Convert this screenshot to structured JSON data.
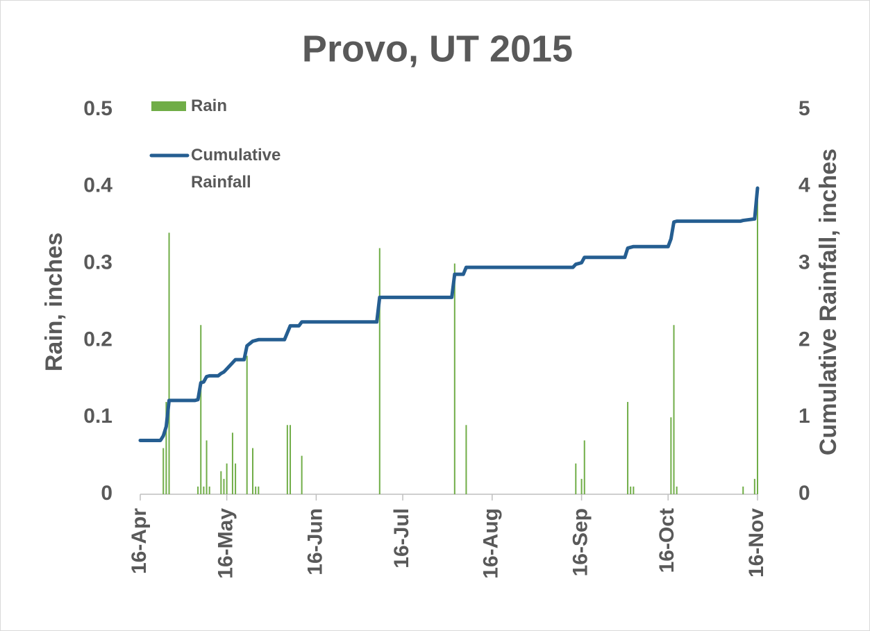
{
  "chart_data": {
    "type": "combo",
    "title": "Provo, UT 2015",
    "y_label": "Rain, inches",
    "y2_label": "Cumulative Rainfall, inches",
    "xlim": [
      "2015-04-16",
      "2015-11-16"
    ],
    "xticks": [
      {
        "value": "2015-04-16",
        "label": "16-Apr"
      },
      {
        "value": "2015-05-16",
        "label": "16-May"
      },
      {
        "value": "2015-06-16",
        "label": "16-Jun"
      },
      {
        "value": "2015-07-16",
        "label": "16-Jul"
      },
      {
        "value": "2015-08-16",
        "label": "16-Aug"
      },
      {
        "value": "2015-09-16",
        "label": "16-Sep"
      },
      {
        "value": "2015-10-16",
        "label": "16-Oct"
      },
      {
        "value": "2015-11-16",
        "label": "16-Nov"
      }
    ],
    "ylim": [
      0,
      0.5
    ],
    "yticks": [
      0,
      0.1,
      0.2,
      0.3,
      0.4,
      0.5
    ],
    "y2lim": [
      0,
      5
    ],
    "y2ticks": [
      0,
      1,
      2,
      3,
      4,
      5
    ],
    "grid": false,
    "legend": "top-left",
    "series": [
      {
        "name": "Rain",
        "type": "bar",
        "color": "#70ad47",
        "x": [
          "2015-04-24",
          "2015-04-25",
          "2015-04-26",
          "2015-05-06",
          "2015-05-07",
          "2015-05-08",
          "2015-05-09",
          "2015-05-10",
          "2015-05-14",
          "2015-05-15",
          "2015-05-16",
          "2015-05-18",
          "2015-05-19",
          "2015-05-23",
          "2015-05-25",
          "2015-05-26",
          "2015-05-27",
          "2015-06-06",
          "2015-06-07",
          "2015-06-11",
          "2015-07-08",
          "2015-08-03",
          "2015-08-07",
          "2015-09-14",
          "2015-09-16",
          "2015-09-17",
          "2015-10-02",
          "2015-10-03",
          "2015-10-04",
          "2015-10-17",
          "2015-10-18",
          "2015-10-19",
          "2015-11-11",
          "2015-11-15",
          "2015-11-16"
        ],
        "values": [
          0.06,
          0.12,
          0.34,
          0.01,
          0.22,
          0.01,
          0.07,
          0.01,
          0.03,
          0.02,
          0.04,
          0.08,
          0.04,
          0.18,
          0.06,
          0.01,
          0.01,
          0.09,
          0.09,
          0.05,
          0.32,
          0.3,
          0.09,
          0.04,
          0.02,
          0.07,
          0.12,
          0.01,
          0.01,
          0.1,
          0.22,
          0.01,
          0.01,
          0.02,
          0.4
        ]
      },
      {
        "name": "Cumulative Rainfall",
        "type": "line",
        "axis": "y2",
        "color": "#255e91",
        "x": [
          "2015-04-16",
          "2015-04-23",
          "2015-04-24",
          "2015-04-25",
          "2015-04-26",
          "2015-05-05",
          "2015-05-06",
          "2015-05-07",
          "2015-05-08",
          "2015-05-09",
          "2015-05-10",
          "2015-05-13",
          "2015-05-14",
          "2015-05-15",
          "2015-05-16",
          "2015-05-18",
          "2015-05-19",
          "2015-05-22",
          "2015-05-23",
          "2015-05-25",
          "2015-05-26",
          "2015-05-27",
          "2015-06-05",
          "2015-06-06",
          "2015-06-07",
          "2015-06-10",
          "2015-06-11",
          "2015-07-07",
          "2015-07-08",
          "2015-08-02",
          "2015-08-03",
          "2015-08-06",
          "2015-08-07",
          "2015-09-13",
          "2015-09-14",
          "2015-09-16",
          "2015-09-17",
          "2015-10-01",
          "2015-10-02",
          "2015-10-03",
          "2015-10-04",
          "2015-10-16",
          "2015-10-17",
          "2015-10-18",
          "2015-10-19",
          "2015-11-10",
          "2015-11-11",
          "2015-11-15",
          "2015-11-16"
        ],
        "values": [
          0.7,
          0.7,
          0.76,
          0.88,
          1.22,
          1.22,
          1.23,
          1.45,
          1.46,
          1.53,
          1.54,
          1.54,
          1.57,
          1.59,
          1.63,
          1.71,
          1.75,
          1.75,
          1.93,
          1.99,
          2.0,
          2.01,
          2.01,
          2.1,
          2.19,
          2.19,
          2.24,
          2.24,
          2.56,
          2.56,
          2.86,
          2.86,
          2.95,
          2.95,
          2.99,
          3.01,
          3.08,
          3.08,
          3.2,
          3.21,
          3.22,
          3.22,
          3.32,
          3.54,
          3.55,
          3.55,
          3.56,
          3.58,
          3.98
        ]
      }
    ]
  }
}
